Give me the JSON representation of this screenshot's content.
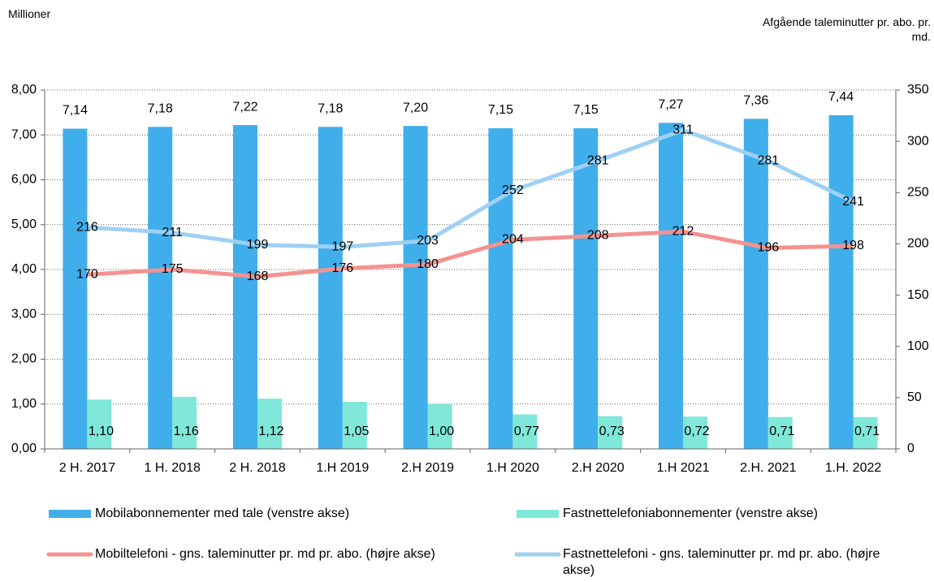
{
  "chart_data": {
    "type": "bar",
    "y_label": "Millioner",
    "y2_label": "Afgående taleminutter pr. abo. pr. md.",
    "categories": [
      "2 H. 2017",
      "1 H. 2018",
      "2 H. 2018",
      "1.H 2019",
      "2.H 2019",
      "1.H 2020",
      "2.H 2020",
      "1.H 2021",
      "2.H. 2021",
      "1.H. 2022"
    ],
    "series": [
      {
        "name": "Mobilabonnementer med tale (venstre akse)",
        "type": "bar",
        "color": "#3faeea",
        "values": [
          7.14,
          7.18,
          7.22,
          7.18,
          7.2,
          7.15,
          7.15,
          7.27,
          7.36,
          7.44
        ],
        "value_labels": [
          "7,14",
          "7,18",
          "7,22",
          "7,18",
          "7,20",
          "7,15",
          "7,15",
          "7,27",
          "7,36",
          "7,44"
        ]
      },
      {
        "name": "Fastnettelefoniabonnementer (venstre akse)",
        "type": "bar",
        "color": "#80e8d9",
        "values": [
          1.1,
          1.16,
          1.12,
          1.05,
          1.0,
          0.77,
          0.73,
          0.72,
          0.71,
          0.71
        ],
        "value_labels": [
          "1,10",
          "1,16",
          "1,12",
          "1,05",
          "1,00",
          "0,77",
          "0,73",
          "0,72",
          "0,71",
          "0,71"
        ]
      },
      {
        "name": "Mobiltelefoni - gns. taleminutter pr. md pr. abo. (højre akse)",
        "type": "line",
        "axis": "y2",
        "color": "#f4928f",
        "values": [
          170,
          175,
          168,
          176,
          180,
          204,
          208,
          212,
          196,
          198
        ]
      },
      {
        "name": "Fastnettelefoni - gns. taleminutter pr. md pr. abo. (højre akse)",
        "type": "line",
        "axis": "y2",
        "color": "#9fd0f3",
        "values": [
          216,
          211,
          199,
          197,
          203,
          252,
          281,
          311,
          281,
          241
        ]
      }
    ],
    "ylim": [
      0,
      8
    ],
    "yticks": [
      {
        "value": 0,
        "label": "0,00"
      },
      {
        "value": 1,
        "label": "1,00"
      },
      {
        "value": 2,
        "label": "2,00"
      },
      {
        "value": 3,
        "label": "3,00"
      },
      {
        "value": 4,
        "label": "4,00"
      },
      {
        "value": 5,
        "label": "5,00"
      },
      {
        "value": 6,
        "label": "6,00"
      },
      {
        "value": 7,
        "label": "7,00"
      },
      {
        "value": 8,
        "label": "8,00"
      }
    ],
    "y2lim": [
      0,
      350
    ],
    "y2ticks": [
      0,
      50,
      100,
      150,
      200,
      250,
      300,
      350
    ],
    "grid": true
  }
}
